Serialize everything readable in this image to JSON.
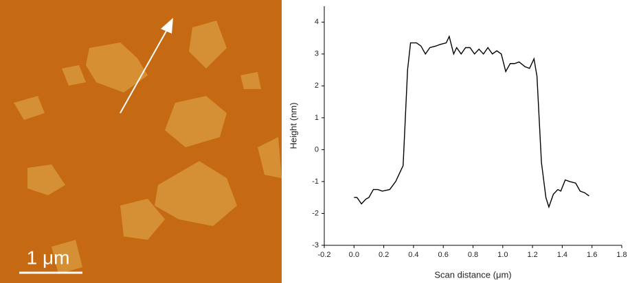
{
  "image": {
    "scale_bar_label": "1 μm"
  },
  "chart_data": {
    "type": "line",
    "x_label": "Scan distance (μm)",
    "y_label": "Height (nm)",
    "x": [
      0.0,
      0.02,
      0.05,
      0.08,
      0.1,
      0.13,
      0.16,
      0.19,
      0.24,
      0.28,
      0.33,
      0.36,
      0.38,
      0.42,
      0.45,
      0.48,
      0.51,
      0.55,
      0.58,
      0.62,
      0.64,
      0.67,
      0.69,
      0.72,
      0.75,
      0.78,
      0.81,
      0.84,
      0.87,
      0.9,
      0.93,
      0.96,
      0.99,
      1.02,
      1.05,
      1.08,
      1.11,
      1.15,
      1.18,
      1.21,
      1.23,
      1.26,
      1.29,
      1.31,
      1.34,
      1.37,
      1.39,
      1.42,
      1.45,
      1.49,
      1.52,
      1.55,
      1.58
    ],
    "values": [
      -1.5,
      -1.5,
      -1.7,
      -1.55,
      -1.5,
      -1.25,
      -1.25,
      -1.3,
      -1.25,
      -1.0,
      -0.5,
      2.5,
      3.35,
      3.35,
      3.25,
      3.0,
      3.2,
      3.25,
      3.3,
      3.35,
      3.55,
      3.0,
      3.2,
      3.0,
      3.2,
      3.2,
      3.0,
      3.15,
      3.0,
      3.2,
      3.0,
      3.1,
      3.0,
      2.45,
      2.7,
      2.7,
      2.75,
      2.6,
      2.55,
      2.85,
      2.3,
      -0.4,
      -1.5,
      -1.8,
      -1.4,
      -1.25,
      -1.3,
      -0.95,
      -1.0,
      -1.05,
      -1.3,
      -1.35,
      -1.45
    ],
    "color": "#000000",
    "xlim": [
      -0.2,
      1.8
    ],
    "xticks": [
      -0.2,
      {
        "value": 0,
        "label": "0.0"
      },
      0.2,
      0.4,
      0.6,
      0.8,
      {
        "value": 1,
        "label": "1.0"
      },
      1.2,
      1.4,
      1.6,
      1.8
    ],
    "ylim": [
      -3,
      4.5
    ],
    "yticks": [
      -3,
      -2,
      -1,
      0,
      1,
      2,
      3,
      4
    ]
  }
}
